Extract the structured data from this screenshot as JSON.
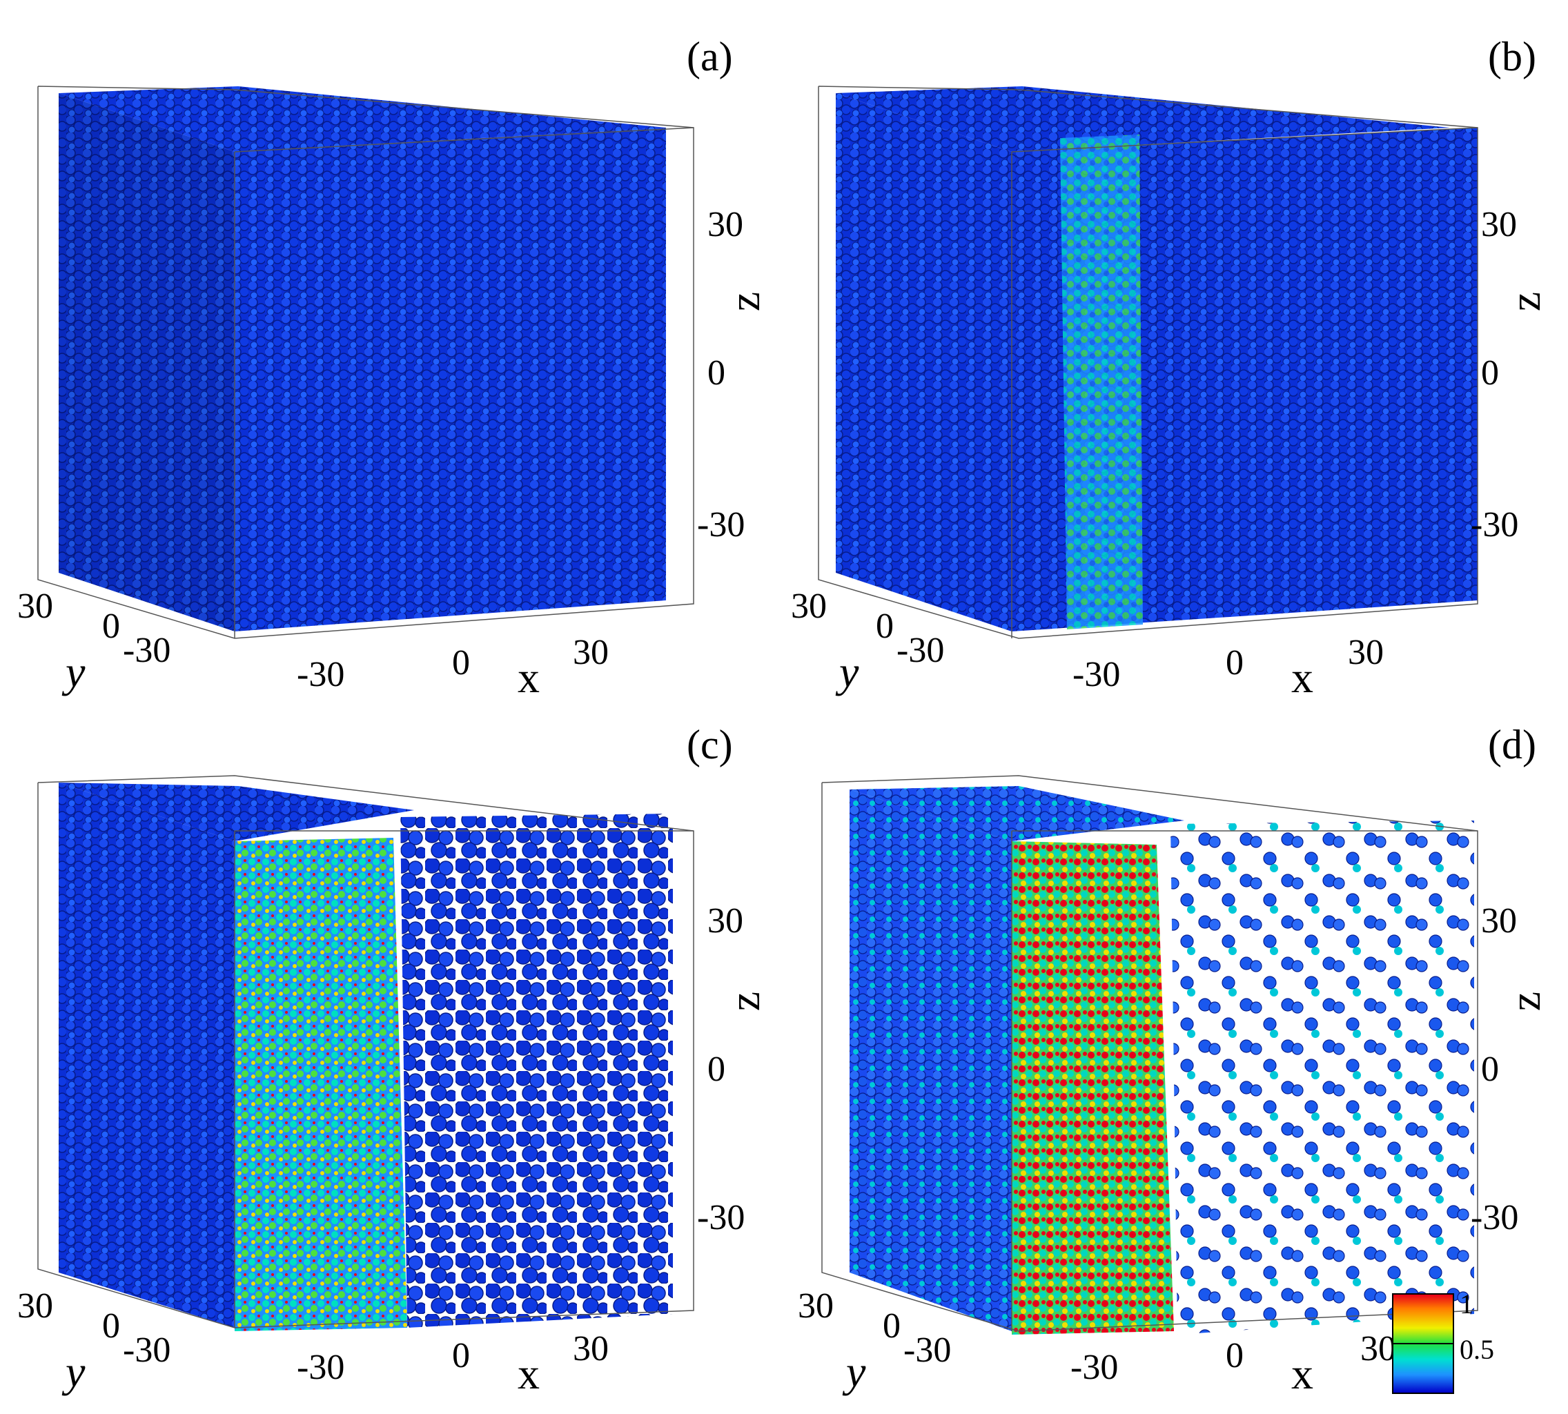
{
  "panels": [
    {
      "label": "(a)",
      "z_ticks": [
        "30",
        "0",
        "-30"
      ],
      "z_label": "z",
      "y_ticks": [
        "30",
        "0",
        "-30"
      ],
      "y_label": "y",
      "x_ticks": [
        "-30",
        "0",
        "30"
      ],
      "x_label": "x"
    },
    {
      "label": "(b)",
      "z_ticks": [
        "30",
        "0",
        "-30"
      ],
      "z_label": "z",
      "y_ticks": [
        "30",
        "0",
        "-30"
      ],
      "y_label": "y",
      "x_ticks": [
        "-30",
        "0",
        "30"
      ],
      "x_label": "x"
    },
    {
      "label": "(c)",
      "z_ticks": [
        "30",
        "0",
        "-30"
      ],
      "z_label": "z",
      "y_ticks": [
        "30",
        "0",
        "-30"
      ],
      "y_label": "y",
      "x_ticks": [
        "-30",
        "0",
        "30"
      ],
      "x_label": "x"
    },
    {
      "label": "(d)",
      "z_ticks": [
        "30",
        "0",
        "-30"
      ],
      "z_label": "z",
      "y_ticks": [
        "30",
        "0",
        "-30"
      ],
      "y_label": "y",
      "x_ticks": [
        "-30",
        "0",
        "30"
      ],
      "x_label": "x"
    }
  ],
  "colorbar": {
    "ticks": [
      "1",
      "0.5"
    ]
  },
  "colors": {
    "low": "#0a2ad8",
    "mid": "#20e040",
    "high": "#e8001a",
    "background": "#ffffff"
  }
}
